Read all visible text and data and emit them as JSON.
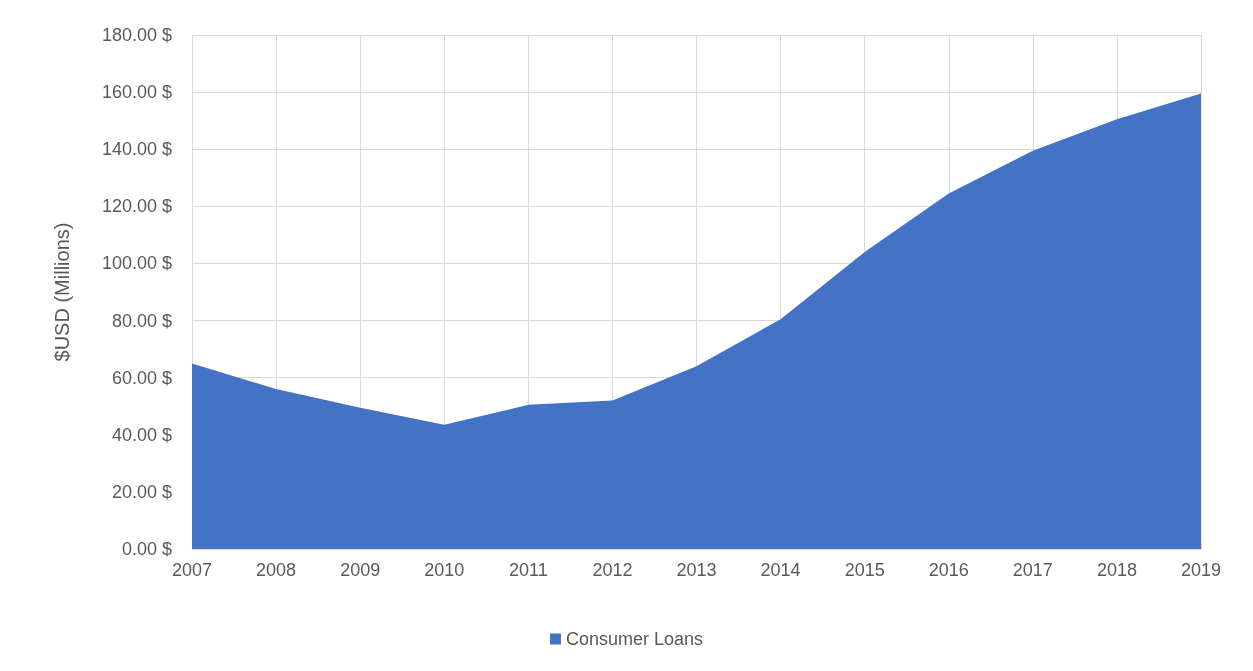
{
  "chart_data": {
    "type": "area",
    "ylabel": "$USD (Millions)",
    "categories": [
      "2007",
      "2008",
      "2009",
      "2010",
      "2011",
      "2012",
      "2013",
      "2014",
      "2015",
      "2016",
      "2017",
      "2018",
      "2019"
    ],
    "series": [
      {
        "name": "Consumer Loans",
        "color": "#4472c4",
        "values": [
          65,
          56,
          49.5,
          43.5,
          50.5,
          52,
          64,
          80.5,
          104,
          124.5,
          139.5,
          150.5,
          159.5
        ]
      }
    ],
    "ylim": [
      0,
      180
    ],
    "yticks": [
      {
        "value": 0,
        "label": "0.00 $"
      },
      {
        "value": 20,
        "label": "20.00 $"
      },
      {
        "value": 40,
        "label": "40.00 $"
      },
      {
        "value": 60,
        "label": "60.00 $"
      },
      {
        "value": 80,
        "label": "80.00 $"
      },
      {
        "value": 100,
        "label": "100.00 $"
      },
      {
        "value": 120,
        "label": "120.00 $"
      },
      {
        "value": 140,
        "label": "140.00 $"
      },
      {
        "value": 160,
        "label": "160.00 $"
      },
      {
        "value": 180,
        "label": "180.00 $"
      }
    ],
    "grid": true,
    "legend": "bottom"
  }
}
